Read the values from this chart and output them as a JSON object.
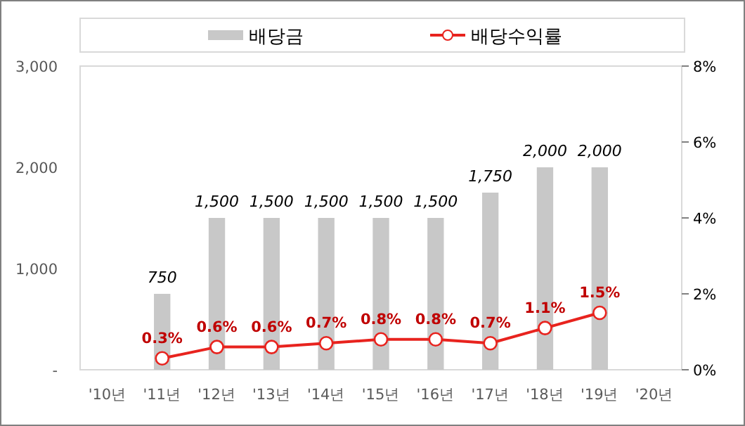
{
  "chart_data": {
    "type": "bar",
    "categories": [
      "'10년",
      "'11년",
      "'12년",
      "'13년",
      "'14년",
      "'15년",
      "'16년",
      "'17년",
      "'18년",
      "'19년",
      "'20년"
    ],
    "series": [
      {
        "name": "배당금",
        "color": "#c8c8c8",
        "values": [
          null,
          750,
          1500,
          1500,
          1500,
          1500,
          1500,
          1750,
          2000,
          2000,
          null
        ],
        "value_labels": [
          null,
          "750",
          "1,500",
          "1,500",
          "1,500",
          "1,500",
          "1,500",
          "1,750",
          "2,000",
          "2,000",
          null
        ]
      },
      {
        "name": "배당수익률",
        "type": "line",
        "axis": "y2",
        "color": "#e8231e",
        "marker": "circle",
        "values": [
          null,
          0.3,
          0.6,
          0.6,
          0.7,
          0.8,
          0.8,
          0.7,
          1.1,
          1.5,
          null
        ],
        "value_labels": [
          null,
          "0.3%",
          "0.6%",
          "0.6%",
          "0.7%",
          "0.8%",
          "0.8%",
          "0.7%",
          "1.1%",
          "1.5%",
          null
        ]
      }
    ],
    "ylim": [
      0,
      3000
    ],
    "yticks": [
      {
        "value": 0,
        "label": "-"
      },
      {
        "value": 1000,
        "label": "1,000"
      },
      {
        "value": 2000,
        "label": "2,000"
      },
      {
        "value": 3000,
        "label": "3,000"
      }
    ],
    "y2lim": [
      0,
      8
    ],
    "y2ticks": [
      {
        "value": 0,
        "label": "0%"
      },
      {
        "value": 2,
        "label": "2%"
      },
      {
        "value": 4,
        "label": "4%"
      },
      {
        "value": 6,
        "label": "6%"
      },
      {
        "value": 8,
        "label": "8%"
      }
    ],
    "legend": "top"
  }
}
